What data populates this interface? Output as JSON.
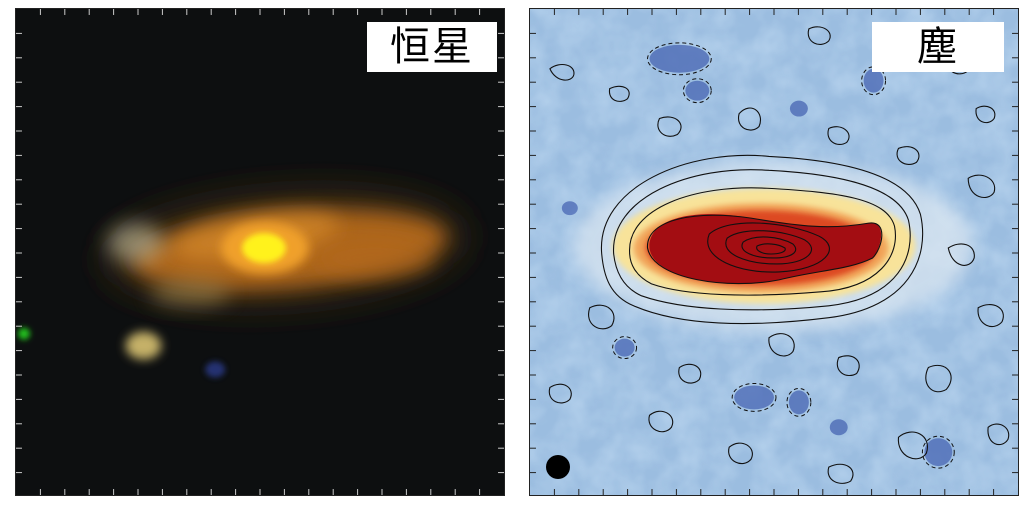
{
  "panels": {
    "stars": {
      "label": "恒星",
      "colors": {
        "background": "#0d0f10",
        "bulge": "#fff21a",
        "disk": "#e0881e"
      }
    },
    "dust": {
      "label": "塵",
      "colors": {
        "background": "#9bbde0",
        "core": "#a30d12",
        "halo": "#f8e39a",
        "contour": "#111111"
      }
    }
  }
}
